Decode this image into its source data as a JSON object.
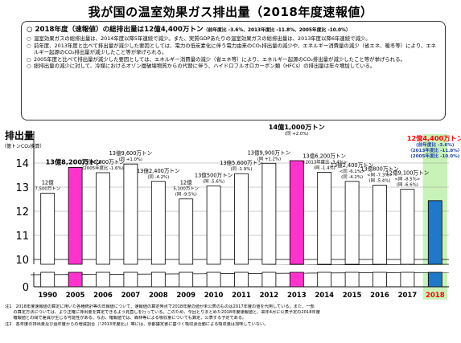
{
  "title": "我が国の温室効果ガス排出量（2018年度速報値）",
  "summary": {
    "headline": "2018年度（速報値）の総排出量は12億4,400万トン",
    "headline_note": "（前年度比 -3.6%、2013年度比 -11.8%、2005年度比 -10.0%）",
    "bullets": [
      "温室効果ガスの総排出量は、2014年度以降5年連続で減少。また、実質GDPあたりの温室効果ガスの総排出量は、2013年度以降6年連続で減少。",
      "前年度、2013年度と比べて排出量が減少した要因としては、電力の低炭素化に伴う電力由来のCO₂排出量の減少や、エネルギー消費量の減少（省エネ、暖冬等）により、エネルギー起源のCO₂排出量が減少したこと等が挙げられる。",
      "2005年度と比べて排出量が減少した要因としては、エネルギー消費量の減少（省エネ等）により、エネルギー起源のCO₂排出量が減少したこと等が挙げられる。",
      "総排出量の減少に対して、冷媒におけるオゾン層破壊物質からの代替に伴う、ハイドロフルオロカーボン類（HFCs）の排出量は年々増加している。"
    ]
  },
  "chart_data": {
    "type": "bar",
    "ylabel": "排出量",
    "yunit": "（億トンCO₂換算）",
    "ylim": [
      10,
      14.6
    ],
    "yticks": [
      0,
      10,
      11,
      12,
      13,
      14
    ],
    "categories": [
      "1990",
      "2005",
      "2006",
      "2007",
      "2008",
      "2009",
      "2010",
      "2011",
      "2012",
      "2013",
      "2014",
      "2015",
      "2016",
      "2017",
      "2018"
    ],
    "values": [
      12.75,
      13.82,
      13.6,
      13.96,
      13.24,
      12.51,
      13.05,
      13.56,
      13.99,
      14.1,
      13.62,
      13.24,
      13.08,
      12.91,
      12.44
    ],
    "bar_colors": [
      "#ffffff",
      "#ff33cc",
      "#ffffff",
      "#ffffff",
      "#ffffff",
      "#ffffff",
      "#ffffff",
      "#ffffff",
      "#ffffff",
      "#ff33cc",
      "#ffffff",
      "#ffffff",
      "#ffffff",
      "#ffffff",
      "#1f78c8"
    ],
    "labels": [
      [
        "12億",
        "7,500万トン"
      ],
      [
        "13億8,200万トン"
      ],
      [
        "13億6,000万トン",
        "(2005年度比 -1.6%)"
      ],
      [
        "13億9,600万トン",
        "(同 +1.0%)"
      ],
      [
        "13億2,400万トン",
        "(同 -4.2%)"
      ],
      [
        "12億",
        "5,100万トン",
        "(同 -9.5%)"
      ],
      [
        "13億500万トン",
        "(同 -5.6%)"
      ],
      [
        "13億5,600万トン",
        "(同 -1.9%)"
      ],
      [
        "13億9,900万トン",
        "(同 +1.2%)"
      ],
      [
        "14億1,000万トン",
        "(同 +2.0%)"
      ],
      [
        "13億6,200万トン",
        "<2013年度比 -3.4%>",
        "(同 -1.4%)"
      ],
      [
        "13億2,400万トン",
        "<同 -6.1%>",
        "(同 -4.2%)"
      ],
      [
        "13億800万トン",
        "<同 -7.3%>",
        "(同 -5.4%)"
      ],
      [
        "12億9,100万トン",
        "<同 -8.5%>",
        "(同 -6.6%)"
      ],
      [
        "12億4,400万トン",
        "(前年度比 -3.6%)",
        "〈2013年度比 -11.8%〉",
        "(2005年度比 -10.0%)"
      ]
    ],
    "label_colors": {
      "normal": "#000000",
      "highlight_2018": "#ff0000",
      "highlight_2018_sub": "#1a3fb0"
    },
    "highlight_background": "#c9f2b8",
    "grid": true,
    "axis_break": true
  },
  "footnotes": [
    "注1　2018年度速報値の算定に用いた各種統計等の年報値について、速報値の算定時点で2018年度の値が未公表のものは2017年度の値を代用している。また、一部",
    "　　の算定方法については、より正確に排出量を算定できるよう見直しを行っている。このため、今回とりまとめた2018年度速報値と、来年4月に公表予定の2018年度",
    "　　確報値との間で差異が生じる可能性がある。なお、確報値では、森林等による吸収量についても算定、公表する予定である。",
    "注2　各年度の排出量及び過年度からの増減割合（「2013年度比」）等には、京都議定書に基づく吸収源活動による吸収量は加味していない。"
  ]
}
